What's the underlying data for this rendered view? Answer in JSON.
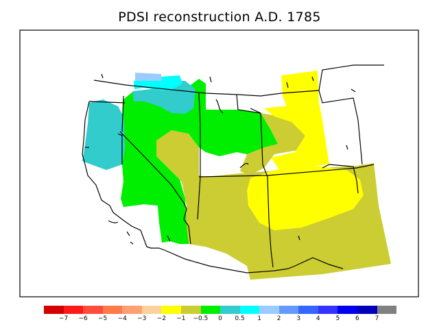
{
  "title": "PDSI reconstruction A.D. 1785",
  "legend": {
    "colors": [
      "#d40000",
      "#ff1a1a",
      "#ff4d3b",
      "#ff7a4a",
      "#ffa070",
      "#ffd0a0",
      "#ffff00",
      "#cccc33",
      "#00ee00",
      "#33cccc",
      "#00ffff",
      "#99ccff",
      "#6699ff",
      "#3366ff",
      "#3333ff",
      "#0000ee",
      "#0000bb",
      "#808080"
    ],
    "labels": [
      "−7",
      "−6",
      "−5",
      "−4",
      "−3",
      "−2",
      "−1",
      "−0.5",
      "0",
      "0.5",
      "1",
      "2",
      "3",
      "4",
      "5",
      "6",
      "7"
    ]
  },
  "palette": {
    "dry_mild": "#cccc33",
    "dry_moderate": "#ffff00",
    "neutral": "#00ee00",
    "wet_mild": "#33cccc",
    "wet_moderate": "#00ffff",
    "wet_strong": "#99ccff"
  }
}
